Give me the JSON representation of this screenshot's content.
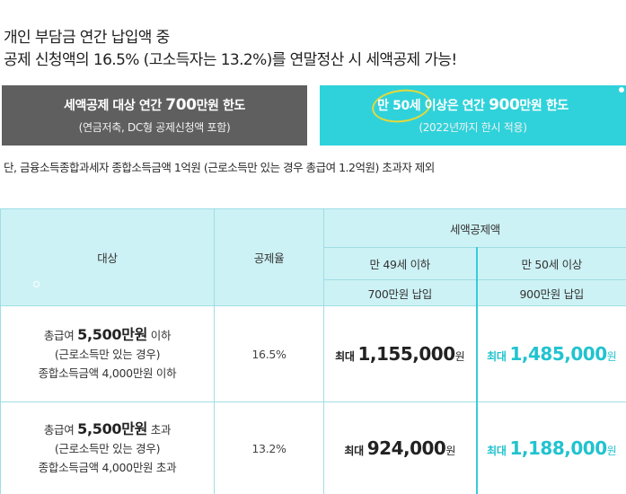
{
  "intro": {
    "line1": "개인 부담금 연간 납입액 중",
    "line2": "공제 신청액의 16.5% (고소득자는 13.2%)를 연말정산 시 세액공제 가능!"
  },
  "box_gray": {
    "title_pre": "세액공제 대상 연간 ",
    "title_num": "700",
    "title_post": "만원 한도",
    "sub": "(연금저축, DC형 공제신청액 포함)"
  },
  "box_cyan": {
    "title_pre": "만 50세 이상은 연간 ",
    "title_num": "900",
    "title_post": "만원 한도",
    "sub": "(2022년까지 한시 적용)"
  },
  "note": "단, 금융소득종합과세자 종합소득금액 1억원 (근로소득만 있는 경우 총급여 1.2억원) 초과자 제외",
  "table": {
    "header_target": "대상",
    "header_rate": "공제율",
    "header_credit": "세액공제액",
    "col_under": "만 49세 이하",
    "col_over": "만 50세 이상",
    "col_under_sub": "700만원 납입",
    "col_over_sub": "900만원 납입",
    "rows": [
      {
        "target_pre": "총급여 ",
        "target_strong": "5,500만원",
        "target_post": " 이하",
        "target_line2": "(근로소득만 있는 경우)",
        "target_line3": "종합소득금액 4,000만원 이하",
        "rate": "16.5%",
        "under_label": "최대 ",
        "under_value": "1,155,000",
        "under_unit": "원",
        "over_label": "최대 ",
        "over_value": "1,485,000",
        "over_unit": "원"
      },
      {
        "target_pre": "총급여 ",
        "target_strong": "5,500만원",
        "target_post": " 초과",
        "target_line2": "(근로소득만 있는 경우)",
        "target_line3": "종합소득금액 4,000만원 초과",
        "rate": "13.2%",
        "under_label": "최대 ",
        "under_value": "924,000",
        "under_unit": "원",
        "over_label": "최대 ",
        "over_value": "1,188,000",
        "over_unit": "원"
      }
    ]
  },
  "colors": {
    "gray_box": "#5f5f5f",
    "cyan_box": "#2fd2da",
    "header_bg": "#cdf2f5",
    "cyan_text": "#21c3cf",
    "highlight_ring": "#e7d83a"
  }
}
